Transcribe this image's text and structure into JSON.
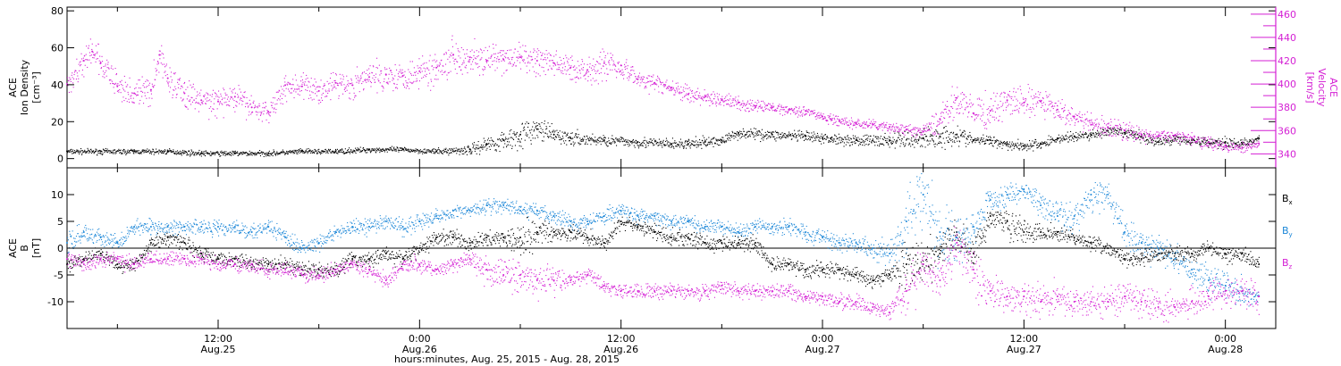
{
  "colors": {
    "density": "#000000",
    "velocity": "#d41fd4",
    "bx": "#000000",
    "by": "#1c87d8",
    "bz": "#d41fd4",
    "axis": "#000000"
  },
  "chart_data": [
    {
      "type": "scatter",
      "panel": "top",
      "left_axis": {
        "label_lines": [
          "ACE",
          "Ion Density",
          "[cm⁻³]"
        ],
        "ylim": [
          -5,
          82
        ],
        "ticks": [
          0,
          20,
          40,
          60,
          80
        ]
      },
      "right_axis": {
        "label_lines": [
          "ACE",
          "Velocity",
          "[km/s]"
        ],
        "ylim": [
          328,
          466
        ],
        "ticks": [
          340,
          360,
          380,
          400,
          420,
          440,
          460
        ]
      },
      "xlim_hours": [
        3,
        75
      ],
      "series": [
        {
          "key": "density",
          "axis": "left",
          "x_hours": [
            3,
            5,
            7,
            9,
            11,
            13,
            15,
            17,
            19,
            21,
            23,
            25,
            27,
            28,
            29,
            30,
            31,
            32,
            33,
            35,
            37,
            39,
            40,
            41,
            42,
            43,
            45,
            47,
            48,
            48.5,
            50,
            52,
            54,
            55,
            56,
            57,
            58,
            59,
            60,
            61,
            62,
            63,
            64,
            65,
            66,
            67,
            68,
            69,
            70,
            71,
            72,
            73,
            74
          ],
          "values": [
            4,
            4,
            4,
            4,
            3,
            3,
            3,
            4,
            4,
            5,
            5,
            4,
            5,
            8,
            10,
            13,
            16,
            13,
            11,
            10,
            9,
            8,
            8,
            9,
            10,
            14,
            13,
            12,
            11,
            11,
            10,
            10,
            11,
            12,
            13,
            10,
            10,
            8,
            7,
            8,
            11,
            12,
            13,
            15,
            14,
            12,
            9,
            11,
            10,
            9,
            9,
            8,
            11
          ],
          "spread": [
            1,
            1,
            1,
            1,
            1,
            1,
            1,
            1,
            1,
            1,
            1,
            1,
            2,
            3,
            4,
            5,
            4,
            3,
            3,
            2,
            2,
            2,
            2,
            2,
            2,
            2,
            2,
            2,
            2,
            2,
            2,
            3,
            4,
            4,
            4,
            2,
            2,
            2,
            2,
            2,
            2,
            2,
            2,
            2,
            2,
            2,
            2,
            2,
            2,
            2,
            2,
            2,
            1
          ]
        },
        {
          "key": "velocity",
          "axis": "right",
          "x_hours": [
            3,
            4,
            4.5,
            5,
            6,
            7,
            8,
            8.5,
            9,
            10,
            11,
            12,
            13,
            14,
            15,
            16,
            17,
            18,
            19,
            20,
            21,
            22,
            23,
            24,
            25,
            26,
            27,
            28,
            29,
            30,
            31,
            32,
            33,
            34,
            35,
            36,
            37,
            38,
            39,
            40,
            41,
            42,
            43,
            44,
            45,
            46,
            47,
            48,
            48.5,
            49,
            50,
            51,
            52,
            53,
            54,
            55,
            56,
            57,
            58,
            59,
            60,
            61,
            62,
            63,
            64,
            65,
            66,
            67,
            68,
            69,
            70,
            71,
            72,
            73,
            74
          ],
          "values": [
            400,
            420,
            428,
            418,
            398,
            392,
            395,
            425,
            405,
            392,
            386,
            385,
            389,
            380,
            376,
            399,
            398,
            394,
            401,
            399,
            406,
            408,
            407,
            411,
            414,
            425,
            423,
            420,
            421,
            423,
            420,
            418,
            414,
            412,
            418,
            416,
            404,
            401,
            397,
            391,
            389,
            386,
            384,
            381,
            380,
            378,
            377,
            372,
            370,
            368,
            366,
            365,
            363,
            361,
            359,
            370,
            388,
            375,
            377,
            386,
            384,
            385,
            378,
            372,
            365,
            363,
            360,
            357,
            355,
            356,
            354,
            350,
            347,
            345,
            349
          ],
          "spread": [
            6,
            10,
            8,
            9,
            9,
            9,
            9,
            10,
            9,
            9,
            8,
            8,
            8,
            7,
            7,
            8,
            8,
            8,
            8,
            8,
            9,
            9,
            9,
            10,
            10,
            11,
            10,
            9,
            9,
            9,
            9,
            8,
            8,
            8,
            10,
            8,
            6,
            5,
            5,
            5,
            4,
            4,
            4,
            4,
            3,
            3,
            3,
            3,
            3,
            3,
            3,
            3,
            3,
            3,
            4,
            8,
            10,
            8,
            10,
            10,
            9,
            8,
            7,
            6,
            6,
            6,
            5,
            5,
            4,
            4,
            4,
            4,
            3,
            3,
            3
          ]
        }
      ]
    },
    {
      "type": "scatter",
      "panel": "bottom",
      "left_axis": {
        "label_lines": [
          "ACE",
          "B",
          "[nT]"
        ],
        "ylim": [
          -15,
          15
        ],
        "ticks": [
          -10,
          -5,
          0,
          5,
          10
        ]
      },
      "xlim_hours": [
        3,
        75
      ],
      "zero_line": true,
      "x_ticks": [
        {
          "hours": 12,
          "time": "12:00",
          "date": "Aug.25"
        },
        {
          "hours": 24,
          "time": "0:00",
          "date": "Aug.26"
        },
        {
          "hours": 36,
          "time": "12:00",
          "date": "Aug.26"
        },
        {
          "hours": 48,
          "time": "0:00",
          "date": "Aug.27"
        },
        {
          "hours": 60,
          "time": "12:00",
          "date": "Aug.27"
        },
        {
          "hours": 72,
          "time": "0:00",
          "date": "Aug.28"
        }
      ],
      "xlabel": "hours:minutes, Aug. 25, 2015 - Aug. 28, 2015",
      "series": [
        {
          "key": "bx",
          "name": "B",
          "subscript": "x",
          "x_hours": [
            3,
            4,
            5,
            6,
            7,
            8,
            9,
            10,
            11,
            12,
            13,
            14,
            15,
            16,
            17,
            18,
            19,
            20,
            21,
            22,
            23,
            24,
            25,
            26,
            27,
            28,
            29,
            30,
            31,
            32,
            33,
            34,
            35,
            36,
            37,
            38,
            39,
            40,
            41,
            42,
            43,
            44,
            45,
            46,
            47,
            48,
            49,
            50,
            51,
            52,
            53,
            54,
            55,
            56,
            57,
            58,
            59,
            60,
            61,
            62,
            63,
            64,
            65,
            66,
            67,
            68,
            69,
            70,
            71,
            72,
            73,
            74
          ],
          "values": [
            -3,
            -2,
            -1,
            -3,
            -3,
            1,
            2,
            1,
            -1,
            -2,
            -2,
            -3,
            -3,
            -3,
            -4,
            -4,
            -4,
            -2,
            -2,
            -1,
            -2,
            0,
            2,
            2,
            1,
            2,
            2,
            2,
            3,
            3,
            3,
            2,
            1,
            5,
            4,
            3,
            2,
            2,
            1,
            1,
            1,
            1,
            -3,
            -3,
            -4,
            -4,
            -4,
            -5,
            -6,
            -5,
            -3,
            -3,
            -1,
            3,
            -1,
            6,
            5,
            3,
            3,
            3,
            2,
            1,
            0,
            -2,
            -2,
            -1,
            -1,
            -1,
            0,
            -1,
            -1,
            -3
          ],
          "spread": [
            1,
            1,
            1,
            1,
            1,
            1,
            1,
            1,
            1,
            1,
            1,
            1,
            1,
            1,
            1,
            1,
            1,
            1,
            1,
            1,
            1,
            1,
            1,
            1,
            1,
            1,
            1,
            2,
            2,
            1,
            1,
            1,
            1,
            1,
            1,
            1,
            1,
            1,
            1,
            1,
            1,
            1,
            1,
            1,
            1,
            1,
            1,
            1,
            1,
            1,
            3,
            3,
            3,
            2,
            2,
            2,
            2,
            2,
            1,
            1,
            1,
            1,
            1,
            1,
            1,
            1,
            1,
            1,
            1,
            1,
            1,
            1
          ]
        },
        {
          "key": "by",
          "name": "B",
          "subscript": "y",
          "x_hours": [
            3,
            4,
            5,
            6,
            7,
            8,
            9,
            10,
            11,
            12,
            13,
            14,
            15,
            16,
            17,
            18,
            19,
            20,
            21,
            22,
            23,
            24,
            25,
            26,
            27,
            28,
            29,
            30,
            31,
            32,
            33,
            34,
            35,
            36,
            37,
            38,
            39,
            40,
            41,
            42,
            43,
            44,
            45,
            46,
            47,
            48,
            49,
            50,
            51,
            52,
            53,
            54,
            55,
            56,
            57,
            58,
            59,
            60,
            61,
            62,
            63,
            64,
            65,
            66,
            67,
            68,
            69,
            70,
            71,
            72,
            73,
            74
          ],
          "values": [
            1,
            3,
            2,
            1,
            4,
            4,
            4,
            4,
            4,
            4,
            4,
            3,
            4,
            2,
            0,
            1,
            3,
            4,
            4,
            5,
            4,
            5,
            6,
            7,
            7,
            8,
            8,
            7,
            7,
            6,
            5,
            5,
            6,
            7,
            6,
            6,
            5,
            5,
            4,
            4,
            3,
            4,
            4,
            4,
            3,
            2,
            1,
            1,
            0,
            -1,
            5,
            10,
            3,
            2,
            4,
            9,
            10,
            11,
            8,
            6,
            6,
            10,
            10,
            3,
            1,
            0,
            -2,
            -4,
            -6,
            -7,
            -8,
            -9
          ],
          "spread": [
            2,
            1,
            1,
            1,
            1,
            1,
            1,
            1,
            1,
            1,
            1,
            1,
            1,
            1,
            1,
            1,
            1,
            1,
            1,
            1,
            1,
            1,
            1,
            1,
            1,
            1,
            1,
            1,
            1,
            1,
            1,
            1,
            1,
            1,
            1,
            1,
            1,
            1,
            1,
            1,
            1,
            1,
            1,
            1,
            1,
            1,
            1,
            1,
            1,
            2,
            4,
            4,
            4,
            3,
            3,
            2,
            2,
            1,
            2,
            2,
            2,
            2,
            2,
            2,
            2,
            2,
            2,
            2,
            2,
            2,
            2,
            1
          ]
        },
        {
          "key": "bz",
          "name": "B",
          "subscript": "z",
          "x_hours": [
            3,
            4,
            5,
            6,
            7,
            8,
            9,
            10,
            11,
            12,
            13,
            14,
            15,
            16,
            17,
            18,
            19,
            20,
            21,
            22,
            23,
            24,
            25,
            26,
            27,
            28,
            29,
            30,
            31,
            32,
            33,
            34,
            35,
            36,
            37,
            38,
            39,
            40,
            41,
            42,
            43,
            44,
            45,
            46,
            47,
            48,
            49,
            50,
            51,
            52,
            53,
            54,
            55,
            56,
            57,
            58,
            59,
            60,
            61,
            62,
            63,
            64,
            65,
            66,
            67,
            68,
            69,
            70,
            71,
            72,
            73,
            74
          ],
          "values": [
            -2,
            -3,
            -2,
            -2,
            -3,
            -2,
            -2,
            -2,
            -2,
            -3,
            -3,
            -3,
            -4,
            -4,
            -5,
            -5,
            -4,
            -3,
            -4,
            -6,
            -3,
            -3,
            -4,
            -3,
            -2,
            -4,
            -5,
            -5,
            -6,
            -6,
            -6,
            -5,
            -7,
            -8,
            -8,
            -8,
            -8,
            -8,
            -8,
            -7,
            -8,
            -8,
            -8,
            -8,
            -9,
            -9,
            -10,
            -10,
            -11,
            -12,
            -8,
            -3,
            -6,
            1,
            -4,
            -8,
            -9,
            -9,
            -10,
            -9,
            -10,
            -10,
            -10,
            -9,
            -10,
            -11,
            -11,
            -10,
            -9,
            -8,
            -8,
            -9
          ],
          "spread": [
            1,
            1,
            1,
            1,
            1,
            1,
            1,
            1,
            1,
            1,
            1,
            1,
            1,
            1,
            1,
            1,
            1,
            1,
            1,
            1,
            1,
            1,
            1,
            1,
            1,
            2,
            2,
            2,
            2,
            2,
            1,
            1,
            1,
            1,
            1,
            1,
            1,
            1,
            1,
            1,
            1,
            1,
            1,
            1,
            1,
            1,
            1,
            1,
            1,
            1,
            3,
            3,
            3,
            3,
            3,
            2,
            2,
            2,
            2,
            2,
            2,
            2,
            2,
            2,
            2,
            2,
            2,
            2,
            2,
            2,
            2,
            2
          ]
        }
      ]
    }
  ]
}
